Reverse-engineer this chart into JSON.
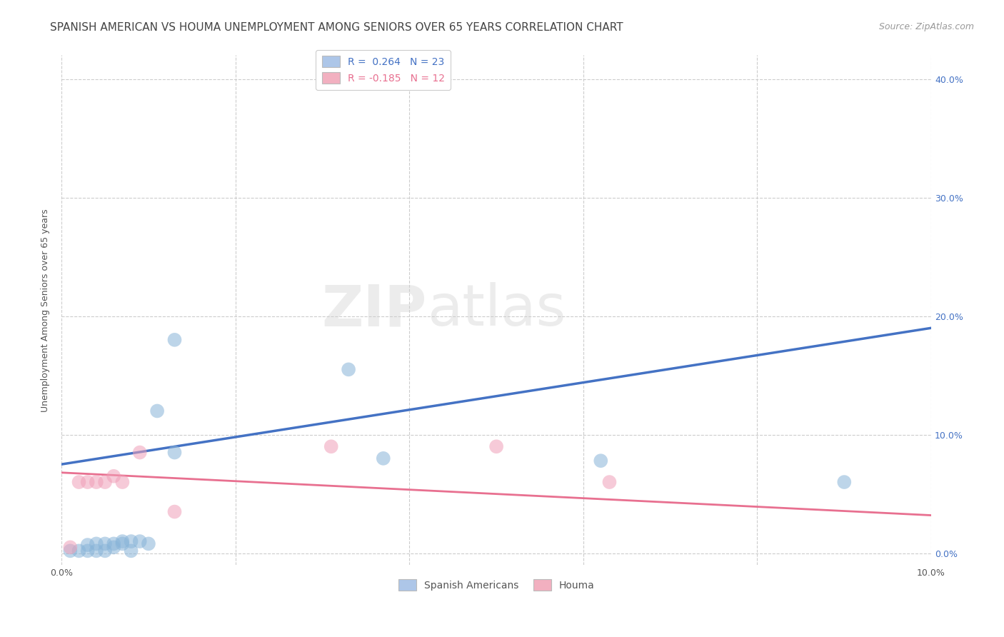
{
  "title": "SPANISH AMERICAN VS HOUMA UNEMPLOYMENT AMONG SENIORS OVER 65 YEARS CORRELATION CHART",
  "source": "Source: ZipAtlas.com",
  "ylabel": "Unemployment Among Seniors over 65 years",
  "xlim": [
    0.0,
    0.1
  ],
  "ylim": [
    -0.01,
    0.42
  ],
  "xtick_vals": [
    0.0,
    0.02,
    0.04,
    0.06,
    0.08,
    0.1
  ],
  "xtick_labels": [
    "0.0%",
    "",
    "",
    "",
    "",
    "10.0%"
  ],
  "ytick_vals": [
    0.0,
    0.1,
    0.2,
    0.3,
    0.4
  ],
  "ytick_labels": [
    "0.0%",
    "10.0%",
    "20.0%",
    "30.0%",
    "40.0%"
  ],
  "legend_blue_label": "R =  0.264   N = 23",
  "legend_pink_label": "R = -0.185   N = 12",
  "legend_blue_color": "#adc6e8",
  "legend_pink_color": "#f2b0c0",
  "blue_scatter_color": "#88b4d8",
  "pink_scatter_color": "#f0a0b8",
  "blue_line_color": "#4472c4",
  "pink_line_color": "#e87090",
  "watermark_zip": "ZIP",
  "watermark_atlas": "atlas",
  "blue_R": 0.264,
  "blue_N": 23,
  "pink_R": -0.185,
  "pink_N": 12,
  "blue_points_x": [
    0.001,
    0.002,
    0.003,
    0.003,
    0.004,
    0.004,
    0.005,
    0.005,
    0.006,
    0.006,
    0.007,
    0.007,
    0.008,
    0.008,
    0.009,
    0.01,
    0.011,
    0.013,
    0.013,
    0.033,
    0.037,
    0.062,
    0.09
  ],
  "blue_points_y": [
    0.002,
    0.002,
    0.002,
    0.007,
    0.002,
    0.008,
    0.002,
    0.008,
    0.005,
    0.008,
    0.008,
    0.01,
    0.002,
    0.01,
    0.01,
    0.008,
    0.12,
    0.18,
    0.085,
    0.155,
    0.08,
    0.078,
    0.06
  ],
  "pink_points_x": [
    0.001,
    0.002,
    0.003,
    0.004,
    0.005,
    0.006,
    0.007,
    0.009,
    0.013,
    0.031,
    0.05,
    0.063
  ],
  "pink_points_y": [
    0.005,
    0.06,
    0.06,
    0.06,
    0.06,
    0.065,
    0.06,
    0.085,
    0.035,
    0.09,
    0.09,
    0.06
  ],
  "blue_line_x0": 0.0,
  "blue_line_x1": 0.1,
  "blue_line_y0": 0.075,
  "blue_line_y1": 0.19,
  "pink_line_x0": 0.0,
  "pink_line_x1": 0.1,
  "pink_line_y0": 0.068,
  "pink_line_y1": 0.032,
  "background_color": "#ffffff",
  "grid_color": "#cccccc",
  "title_fontsize": 11,
  "axis_label_fontsize": 9,
  "tick_fontsize": 9,
  "legend_fontsize": 10,
  "right_tick_color": "#4472c4"
}
